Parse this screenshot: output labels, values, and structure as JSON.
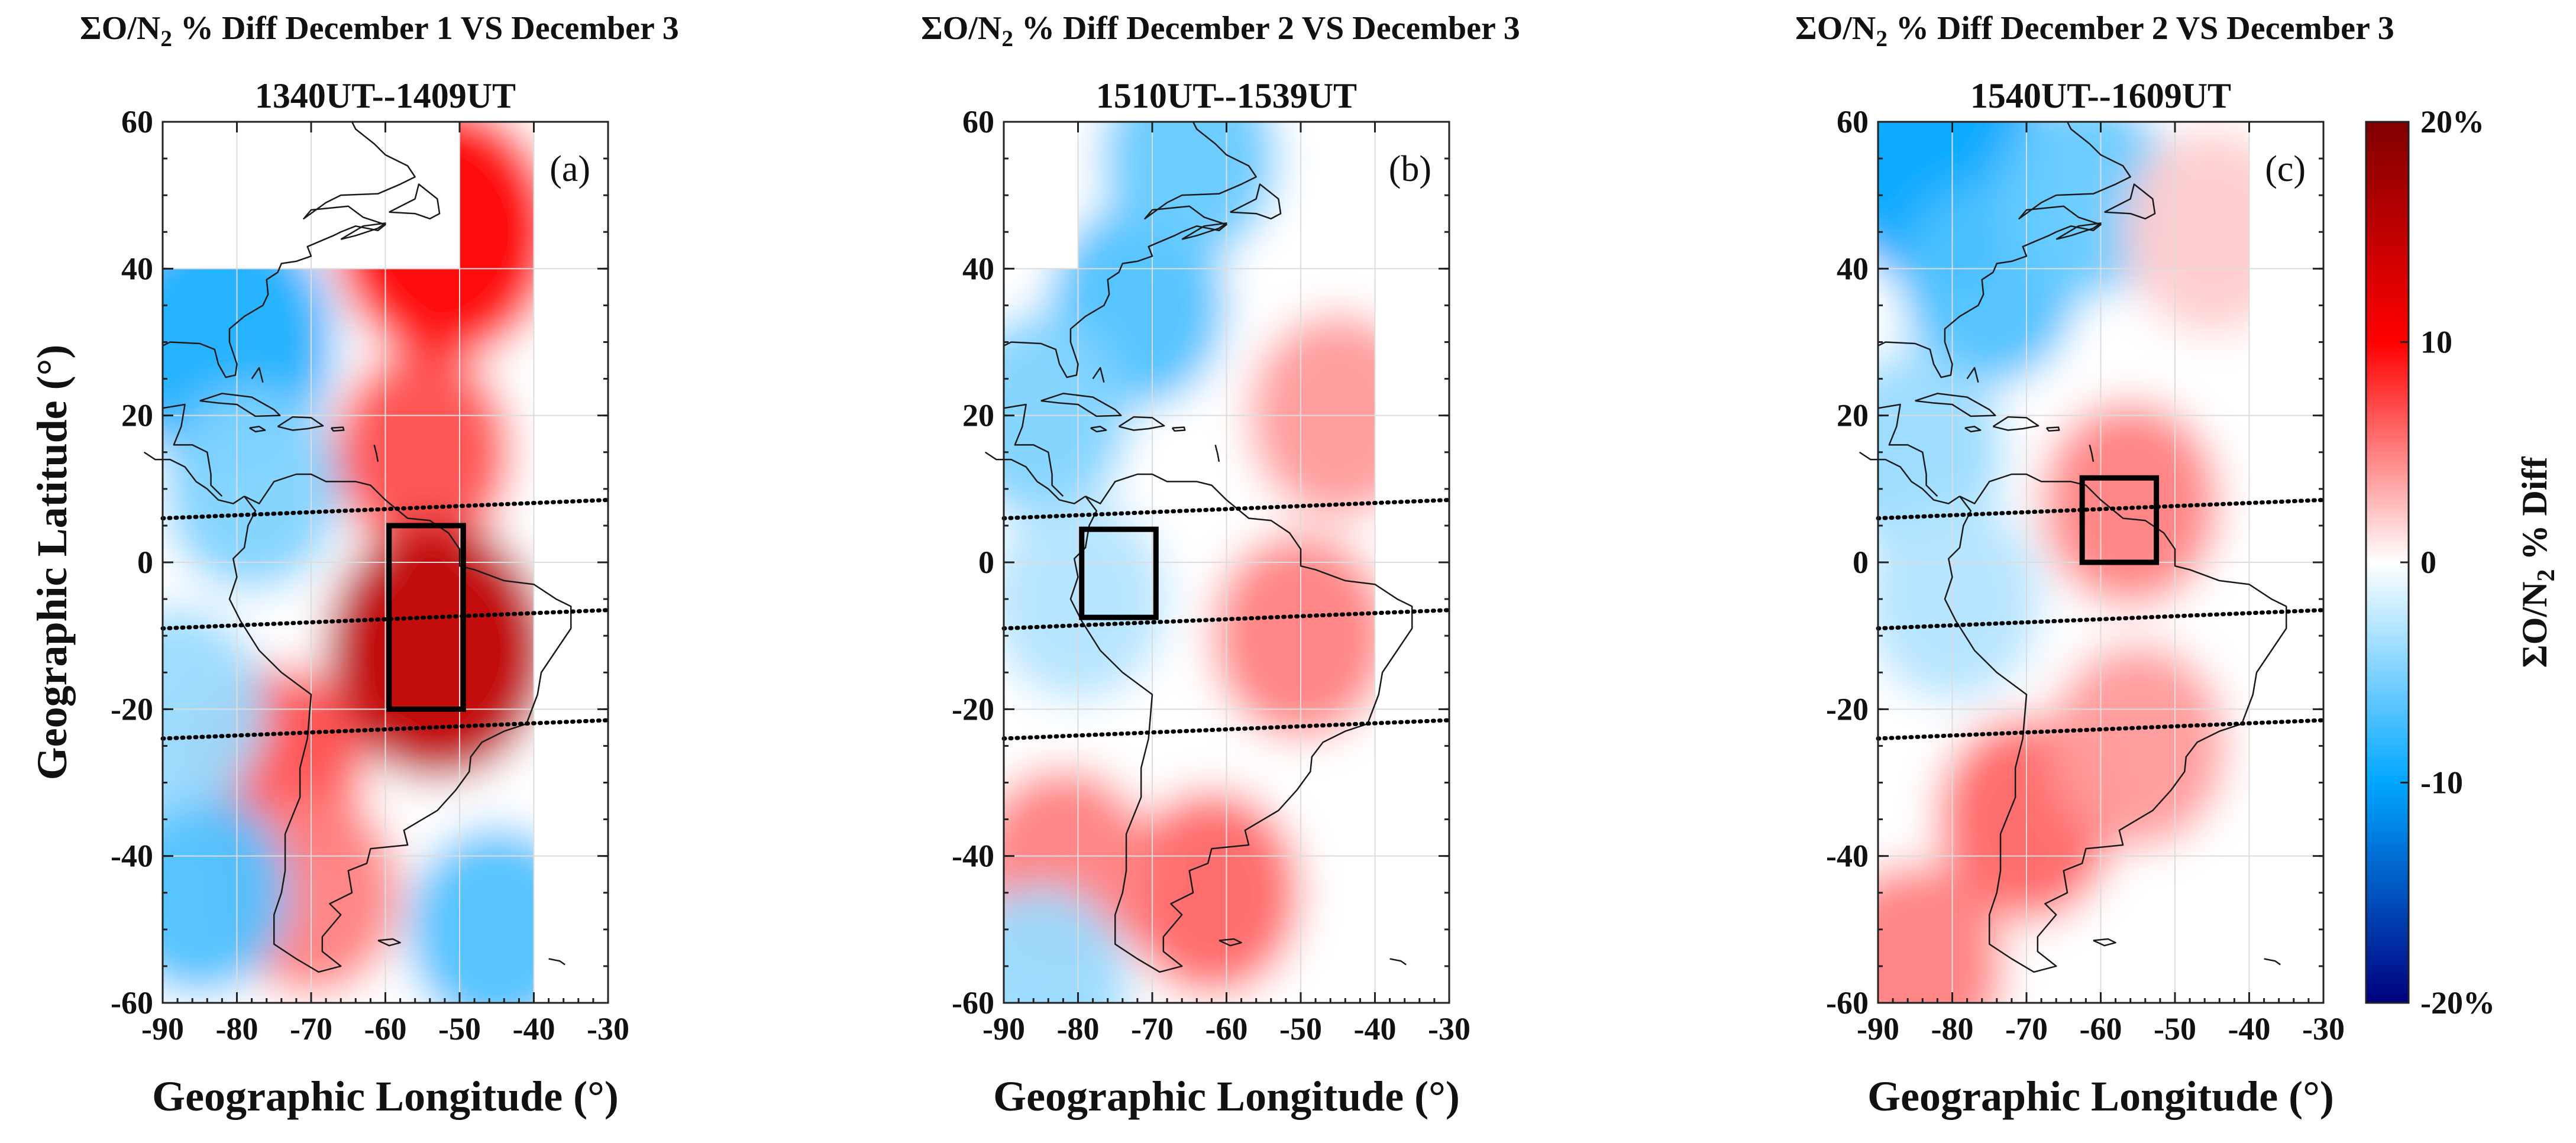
{
  "figure": {
    "colorbar": {
      "label_prefix": "ΣO/N",
      "label_sub": "2",
      "label_suffix": " % Diff",
      "ticks": [
        "20%",
        "10",
        "0",
        "-10",
        "-20%"
      ],
      "min": -20,
      "max": 20,
      "colors": {
        "max": "#800000",
        "high": "#ff0000",
        "mid": "#ffffff",
        "low": "#00a6ff",
        "min": "#000080"
      }
    },
    "panels": [
      {
        "title_prefix": "ΣO/N",
        "title_sub": "2",
        "title_suffix": " % Diff December 1 VS December 3",
        "time": "1340UT--1409UT",
        "panel_label": "(a)",
        "ylabel": "Geographic Latitude (°)",
        "xlabel": "Geographic Longitude (°)"
      },
      {
        "title_prefix": "ΣO/N",
        "title_sub": "2",
        "title_suffix": " % Diff December 2 VS December 3",
        "time": "1510UT--1539UT",
        "panel_label": "(b)",
        "xlabel": "Geographic Longitude (°)"
      },
      {
        "title_prefix": "ΣO/N",
        "title_sub": "2",
        "title_suffix": " % Diff December 2 VS December 3",
        "time": "1540UT--1609UT",
        "panel_label": "(c)",
        "xlabel": "Geographic Longitude (°)"
      }
    ]
  },
  "chart_data": [
    {
      "type": "heatmap",
      "title": "ΣO/N2 % Diff December 1 VS December 3",
      "subtitle": "1340UT--1409UT",
      "xlabel": "Geographic Longitude (°)",
      "ylabel": "Geographic Latitude (°)",
      "xlim": [
        -90,
        -30
      ],
      "ylim": [
        -60,
        60
      ],
      "xticks": [
        -90,
        -80,
        -70,
        -60,
        -50,
        -40,
        -30
      ],
      "yticks": [
        -60,
        -40,
        -20,
        0,
        20,
        40,
        60
      ],
      "grid": true,
      "data_extent": {
        "lon": [
          -90,
          -40
        ],
        "lat": [
          -60,
          60
        ]
      },
      "no_data_regions": [
        {
          "lon": [
            -90,
            -50
          ],
          "lat": [
            40,
            60
          ]
        }
      ],
      "anomalies": [
        {
          "lon": -52,
          "lat": 45,
          "value": 10
        },
        {
          "lon": -55,
          "lat": 15,
          "value": 7
        },
        {
          "lon": -53,
          "lat": -12,
          "value": 15
        },
        {
          "lon": -75,
          "lat": -28,
          "value": 7
        },
        {
          "lon": -70,
          "lat": -45,
          "value": 5
        },
        {
          "lon": -82,
          "lat": 30,
          "value": -9
        },
        {
          "lon": -78,
          "lat": 10,
          "value": -5
        },
        {
          "lon": -85,
          "lat": -45,
          "value": -7
        },
        {
          "lon": -45,
          "lat": -50,
          "value": -7
        },
        {
          "lon": -88,
          "lat": -20,
          "value": -4
        }
      ],
      "box": {
        "lon": [
          -59.5,
          -49.5
        ],
        "lat": [
          -20,
          5
        ]
      },
      "dotted_lines": [
        {
          "lon": [
            -90,
            -30
          ],
          "lat": [
            6,
            8.5
          ]
        },
        {
          "lon": [
            -90,
            -30
          ],
          "lat": [
            -9,
            -6.5
          ]
        },
        {
          "lon": [
            -90,
            -30
          ],
          "lat": [
            -24,
            -21.5
          ]
        }
      ]
    },
    {
      "type": "heatmap",
      "title": "ΣO/N2 % Diff December 2 VS December 3",
      "subtitle": "1510UT--1539UT",
      "xlabel": "Geographic Longitude (°)",
      "ylabel": "",
      "xlim": [
        -90,
        -30
      ],
      "ylim": [
        -60,
        60
      ],
      "xticks": [
        -90,
        -80,
        -70,
        -60,
        -50,
        -40,
        -30
      ],
      "yticks": [
        -60,
        -40,
        -20,
        0,
        20,
        40,
        60
      ],
      "grid": true,
      "data_extent": {
        "lon": [
          -90,
          -40
        ],
        "lat": [
          -60,
          60
        ]
      },
      "no_data_regions": [
        {
          "lon": [
            -90,
            -80
          ],
          "lat": [
            40,
            60
          ]
        }
      ],
      "anomalies": [
        {
          "lon": -72,
          "lat": 35,
          "value": -7
        },
        {
          "lon": -65,
          "lat": 55,
          "value": -6
        },
        {
          "lon": -85,
          "lat": 20,
          "value": -5
        },
        {
          "lon": -45,
          "lat": 20,
          "value": 4
        },
        {
          "lon": -50,
          "lat": -10,
          "value": 5
        },
        {
          "lon": -62,
          "lat": -45,
          "value": 6
        },
        {
          "lon": -82,
          "lat": -42,
          "value": 5
        },
        {
          "lon": -80,
          "lat": -5,
          "value": -3
        },
        {
          "lon": -85,
          "lat": -58,
          "value": -4
        }
      ],
      "box": {
        "lon": [
          -79.5,
          -69.5
        ],
        "lat": [
          -7.5,
          4.5
        ]
      },
      "dotted_lines": [
        {
          "lon": [
            -90,
            -30
          ],
          "lat": [
            6,
            8.5
          ]
        },
        {
          "lon": [
            -90,
            -30
          ],
          "lat": [
            -9,
            -6.5
          ]
        },
        {
          "lon": [
            -90,
            -30
          ],
          "lat": [
            -24,
            -21.5
          ]
        }
      ]
    },
    {
      "type": "heatmap",
      "title": "ΣO/N2 % Diff December 2 VS December 3",
      "subtitle": "1540UT--1609UT",
      "xlabel": "Geographic Longitude (°)",
      "ylabel": "",
      "xlim": [
        -90,
        -30
      ],
      "ylim": [
        -60,
        60
      ],
      "xticks": [
        -90,
        -80,
        -70,
        -60,
        -50,
        -40,
        -30
      ],
      "yticks": [
        -60,
        -40,
        -20,
        0,
        20,
        40,
        60
      ],
      "grid": true,
      "data_extent": {
        "lon": [
          -90,
          -40
        ],
        "lat": [
          -60,
          60
        ]
      },
      "no_data_regions": [],
      "anomalies": [
        {
          "lon": -82,
          "lat": 55,
          "value": -10
        },
        {
          "lon": -75,
          "lat": 38,
          "value": -7
        },
        {
          "lon": -62,
          "lat": 50,
          "value": -6
        },
        {
          "lon": -85,
          "lat": 15,
          "value": -4
        },
        {
          "lon": -56,
          "lat": 8,
          "value": 5
        },
        {
          "lon": -70,
          "lat": -35,
          "value": 6
        },
        {
          "lon": -55,
          "lat": -25,
          "value": 4
        },
        {
          "lon": -85,
          "lat": -55,
          "value": 5
        },
        {
          "lon": -80,
          "lat": -5,
          "value": -3
        },
        {
          "lon": -45,
          "lat": 45,
          "value": 2
        }
      ],
      "box": {
        "lon": [
          -62.5,
          -52.5
        ],
        "lat": [
          0,
          11.5
        ]
      },
      "dotted_lines": [
        {
          "lon": [
            -90,
            -30
          ],
          "lat": [
            6,
            8.5
          ]
        },
        {
          "lon": [
            -90,
            -30
          ],
          "lat": [
            -9,
            -6.5
          ]
        },
        {
          "lon": [
            -90,
            -30
          ],
          "lat": [
            -24,
            -21.5
          ]
        }
      ]
    }
  ]
}
